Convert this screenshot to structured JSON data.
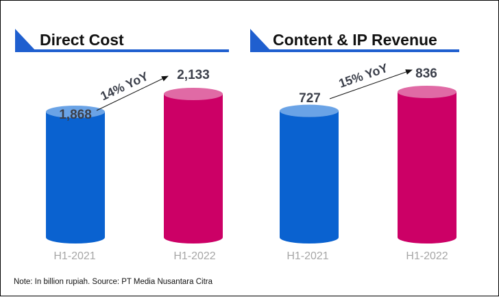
{
  "chart_data": [
    {
      "type": "bar",
      "title": "Direct Cost",
      "categories": [
        "H1-2021",
        "H1-2022"
      ],
      "values": [
        1868,
        2133
      ],
      "value_labels": [
        "1,868",
        "2,133"
      ],
      "growth_label": "14% YoY"
    },
    {
      "type": "bar",
      "title": "Content & IP Revenue",
      "categories": [
        "H1-2021",
        "H1-2022"
      ],
      "values": [
        727,
        836
      ],
      "value_labels": [
        "727",
        "836"
      ],
      "growth_label": "15% YoY"
    }
  ],
  "colors": {
    "base_bar": "#0a62d0",
    "base_top": "#6aa3e6",
    "current_bar": "#cc0066",
    "current_top": "#e06aa5",
    "accent": "#1f5fcf"
  },
  "note": "Note: In billion rupiah. Source: PT Media Nusantara Citra"
}
